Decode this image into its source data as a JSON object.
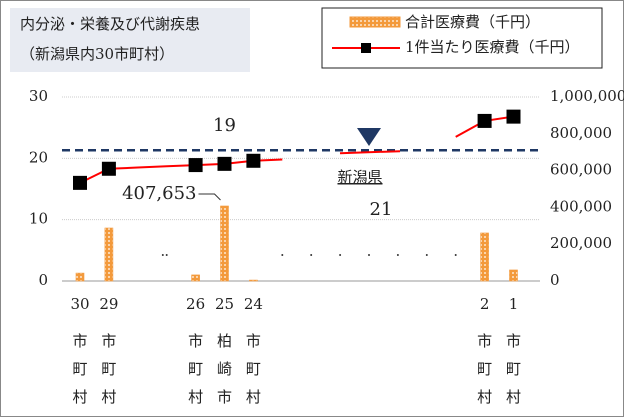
{
  "chart_data": {
    "type": "bar_line",
    "title": "内分泌・栄養及び代謝疾患",
    "subtitle": "（新潟県内30市町村）",
    "categories": [
      "30市町村",
      "29市町村",
      null,
      null,
      "26市町村",
      "25柏崎市",
      "24市町村",
      null,
      null,
      null,
      null,
      null,
      null,
      null,
      "2市町村",
      "1市町村"
    ],
    "series": [
      {
        "name": "合計医療費（千円）",
        "type": "bar",
        "axis": "y2",
        "color": "#f39a3c",
        "values": [
          43000,
          288000,
          null,
          null,
          33000,
          407653,
          5000,
          null,
          null,
          null,
          null,
          null,
          null,
          null,
          261000,
          60000
        ],
        "value_labels": [
          null,
          null,
          null,
          null,
          null,
          "407,653",
          null,
          null,
          null,
          null,
          null,
          null,
          null,
          null,
          null,
          null
        ]
      },
      {
        "name": "1件当たり医療費（千円）",
        "type": "line",
        "axis": "y",
        "color": "#ff0000",
        "marker_color": "#000000",
        "values": [
          16.0,
          18.3,
          18.5,
          18.7,
          18.9,
          19.1,
          19.6,
          19.8,
          null,
          null,
          null,
          null,
          null,
          23.5,
          26.1,
          26.8
        ],
        "markers": [
          true,
          true,
          false,
          false,
          true,
          true,
          true,
          false,
          false,
          false,
          false,
          false,
          false,
          false,
          true,
          true
        ],
        "value_labels": [
          null,
          null,
          null,
          null,
          null,
          "19",
          null,
          null,
          null,
          null,
          null,
          null,
          null,
          null,
          null,
          null
        ]
      }
    ],
    "reference": {
      "name": "新潟県",
      "value": 21,
      "value_label": "21",
      "color": "#1f3864"
    },
    "ylim": [
      0,
      30
    ],
    "yticks": [
      0,
      10,
      20,
      30
    ],
    "y2lim": [
      0,
      1000000
    ],
    "y2ticks": [
      0,
      {
        "value": 200000,
        "label": "200,000"
      },
      {
        "value": 400000,
        "label": "400,000"
      },
      {
        "value": 600000,
        "label": "600,000"
      },
      {
        "value": 800000,
        "label": "800,000"
      },
      {
        "value": 1000000,
        "label": "1,000,000"
      }
    ],
    "grid": true
  }
}
